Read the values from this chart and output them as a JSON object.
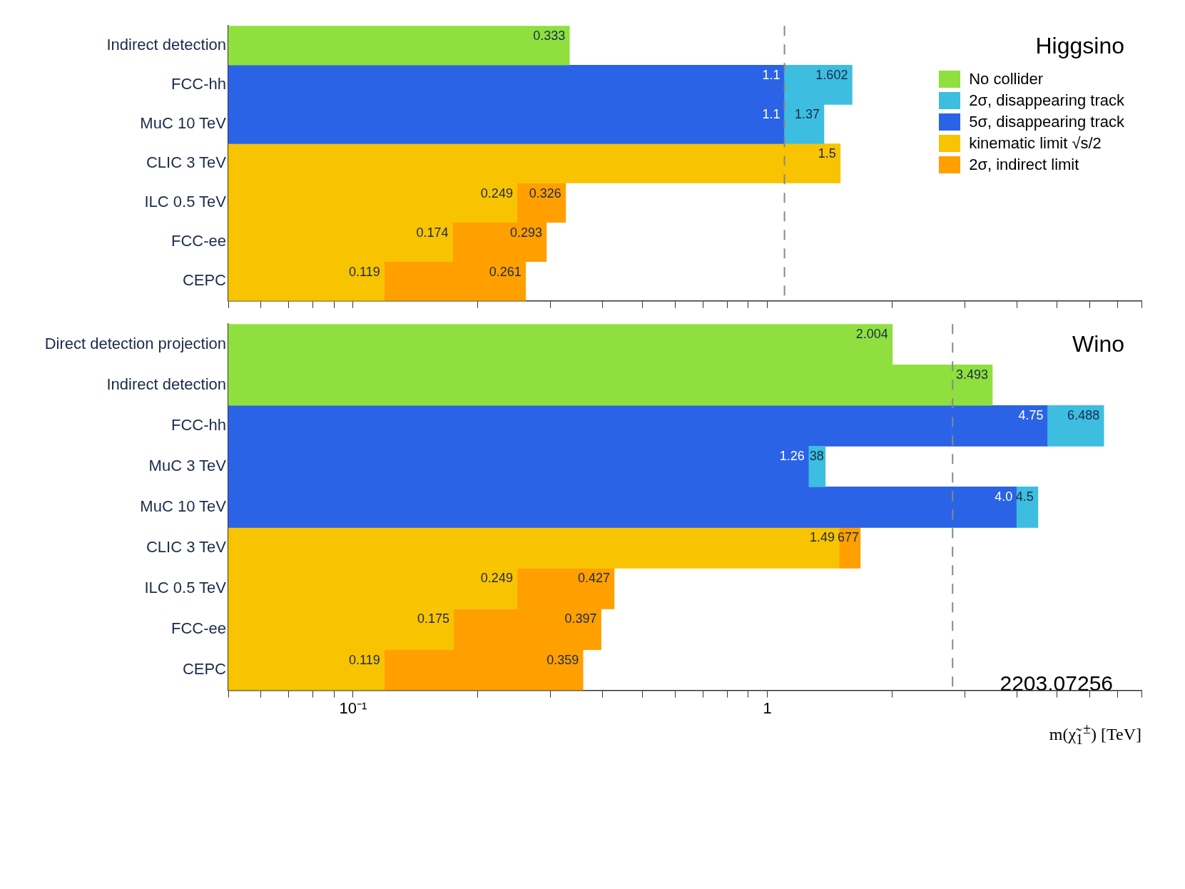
{
  "chart_data": [
    {
      "type": "bar",
      "orientation": "horizontal",
      "title": "Higgsino",
      "categories": [
        "Indirect detection",
        "FCC-hh",
        "MuC 10 TeV",
        "CLIC 3 TeV",
        "ILC 0.5 TeV",
        "FCC-ee",
        "CEPC"
      ],
      "series": [
        {
          "name": "No collider",
          "color": "#8fe03f",
          "values": [
            0.333,
            null,
            null,
            null,
            null,
            null,
            null
          ],
          "value_labels": [
            "0.333",
            null,
            null,
            null,
            null,
            null,
            null
          ]
        },
        {
          "name": "2σ, disappearing track",
          "color": "#3dbde0",
          "values": [
            null,
            0.502,
            0.27,
            null,
            null,
            null,
            null
          ],
          "base": [
            null,
            1.1,
            1.1,
            null,
            null,
            null,
            null
          ],
          "value_labels": [
            null,
            "1.602",
            "1.37",
            null,
            null,
            null,
            null
          ]
        },
        {
          "name": "5σ, disappearing track",
          "color": "#2b63e6",
          "values": [
            null,
            1.1,
            1.1,
            null,
            null,
            null,
            null
          ],
          "value_labels": [
            null,
            "1.1",
            "1.1",
            null,
            null,
            null,
            null
          ]
        },
        {
          "name": "kinematic limit √s/2",
          "color": "#f8c300",
          "values": [
            null,
            null,
            null,
            1.5,
            0.249,
            0.174,
            0.119
          ],
          "value_labels": [
            null,
            null,
            null,
            "1.5",
            "0.249",
            "0.174",
            "0.119"
          ]
        },
        {
          "name": "2σ, indirect limit",
          "color": "#ff9f00",
          "values": [
            null,
            null,
            null,
            null,
            0.077,
            0.119,
            0.142
          ],
          "base": [
            null,
            null,
            null,
            null,
            0.249,
            0.174,
            0.119
          ],
          "value_labels": [
            null,
            null,
            null,
            null,
            "0.326",
            "0.293",
            "0.261"
          ]
        }
      ],
      "xlim": [
        0.05,
        8
      ],
      "xticks": [
        {
          "value": 0.05,
          "label": null
        },
        {
          "value": 0.06,
          "label": null
        },
        {
          "value": 0.07,
          "label": null
        },
        {
          "value": 0.08,
          "label": null
        },
        {
          "value": 0.09,
          "label": null
        },
        {
          "value": 0.1,
          "label": null
        },
        {
          "value": 0.2,
          "label": null
        },
        {
          "value": 0.3,
          "label": null
        },
        {
          "value": 0.4,
          "label": null
        },
        {
          "value": 0.5,
          "label": null
        },
        {
          "value": 0.6,
          "label": null
        },
        {
          "value": 0.7,
          "label": null
        },
        {
          "value": 0.8,
          "label": null
        },
        {
          "value": 0.9,
          "label": null
        },
        {
          "value": 1,
          "label": null
        },
        {
          "value": 2,
          "label": null
        },
        {
          "value": 3,
          "label": null
        },
        {
          "value": 4,
          "label": null
        },
        {
          "value": 5,
          "label": null
        },
        {
          "value": 6,
          "label": null
        },
        {
          "value": 7,
          "label": null
        },
        {
          "value": 8,
          "label": null
        }
      ],
      "log": "x",
      "grid": false,
      "legend": "top right",
      "tick_labels": "y",
      "ref_lines": [
        {
          "axis": "x",
          "value": 1.1,
          "line_style": "dashed",
          "color": "#888888"
        }
      ]
    },
    {
      "type": "bar",
      "orientation": "horizontal",
      "title": "Wino",
      "categories": [
        "Direct detection projection",
        "Indirect detection",
        "FCC-hh",
        "MuC 3 TeV",
        "MuC 10 TeV",
        "CLIC 3 TeV",
        "ILC 0.5 TeV",
        "FCC-ee",
        "CEPC"
      ],
      "series": [
        {
          "color": "#8fe03f",
          "values": [
            2.004,
            3.493,
            null,
            null,
            null,
            null,
            null,
            null,
            null
          ],
          "value_labels": [
            "2.004",
            "3.493",
            null,
            null,
            null,
            null,
            null,
            null,
            null
          ]
        },
        {
          "color": "#3dbde0",
          "values": [
            null,
            null,
            1.738,
            0.12,
            0.5,
            null,
            null,
            null,
            null
          ],
          "base": [
            null,
            null,
            4.75,
            1.26,
            4.0,
            null,
            null,
            null,
            null
          ],
          "value_labels": [
            null,
            null,
            "6.488",
            null,
            "4.5",
            null,
            null,
            null,
            null
          ]
        },
        {
          "color": "#2b63e6",
          "values": [
            null,
            null,
            4.75,
            1.26,
            4.0,
            null,
            null,
            null,
            null
          ],
          "value_labels": [
            null,
            null,
            "4.75",
            "1.26",
            "4.0",
            null,
            null,
            null,
            null
          ]
        },
        {
          "color": "#f8c300",
          "values": [
            null,
            null,
            null,
            null,
            null,
            1.49,
            0.249,
            0.175,
            0.119
          ],
          "value_labels": [
            null,
            null,
            null,
            null,
            null,
            "1.49",
            "0.249",
            "0.175",
            "0.119"
          ]
        },
        {
          "color": "#ff9f00",
          "values": [
            null,
            null,
            null,
            null,
            null,
            0.187,
            0.178,
            0.222,
            0.24
          ],
          "base": [
            null,
            null,
            null,
            null,
            null,
            1.49,
            0.249,
            0.175,
            0.119
          ],
          "value_labels": [
            null,
            null,
            null,
            null,
            null,
            null,
            "0.427",
            "0.397",
            "0.359"
          ]
        }
      ],
      "xlim": [
        0.05,
        8
      ],
      "xticks": [
        {
          "value": 0.05,
          "label": null
        },
        {
          "value": 0.06,
          "label": null
        },
        {
          "value": 0.07,
          "label": null
        },
        {
          "value": 0.08,
          "label": null
        },
        {
          "value": 0.09,
          "label": null
        },
        {
          "value": 0.1,
          "label": "10⁻¹"
        },
        {
          "value": 0.2,
          "label": null
        },
        {
          "value": 0.3,
          "label": null
        },
        {
          "value": 0.4,
          "label": null
        },
        {
          "value": 0.5,
          "label": null
        },
        {
          "value": 0.6,
          "label": null
        },
        {
          "value": 0.7,
          "label": null
        },
        {
          "value": 0.8,
          "label": null
        },
        {
          "value": 0.9,
          "label": null
        },
        1,
        {
          "value": 2,
          "label": null
        },
        {
          "value": 3,
          "label": null
        },
        {
          "value": 4,
          "label": null
        },
        {
          "value": 5,
          "label": null
        },
        {
          "value": 6,
          "label": null
        },
        {
          "value": 7,
          "label": null
        },
        {
          "value": 8,
          "label": null
        }
      ],
      "xlabel": "m(χ̃$_{1}$$^{±}$) [TeV]",
      "log": "x",
      "grid": false,
      "ref_lines": [
        {
          "axis": "x",
          "value": 2.8,
          "line_style": "dashed",
          "color": "#888888"
        }
      ],
      "annotations": [
        "2203.07256",
        {
          "text": "38",
          "x": 1.38,
          "y": "MuC 3 TeV"
        },
        {
          "text": "677",
          "x": 1.677,
          "y": "CLIC 3 TeV"
        }
      ]
    }
  ]
}
